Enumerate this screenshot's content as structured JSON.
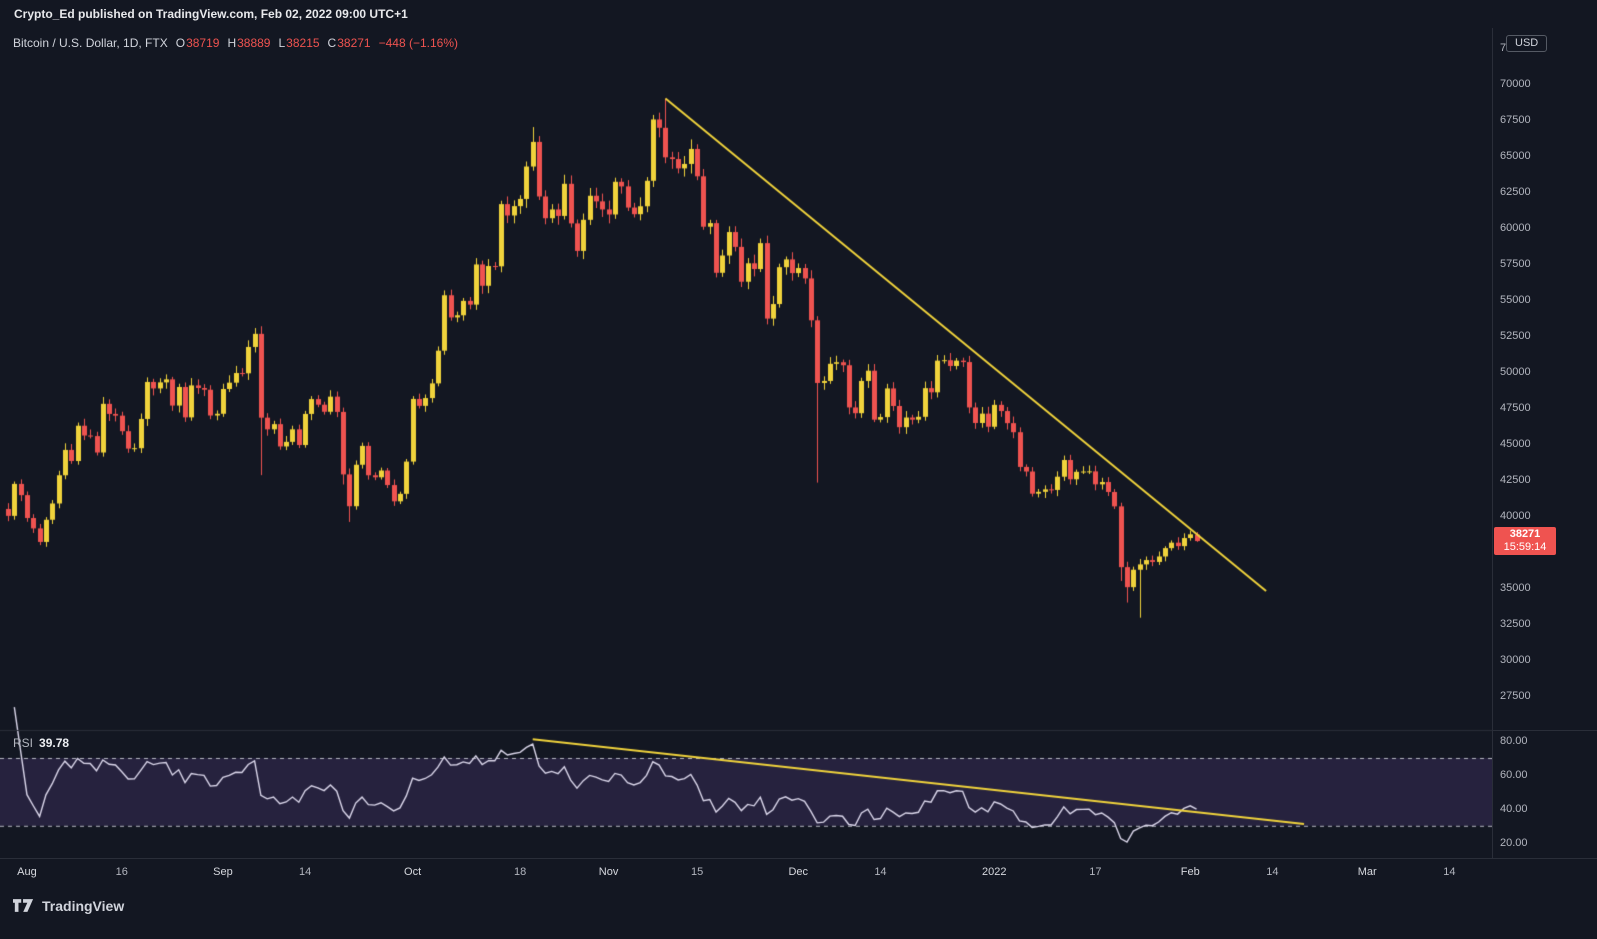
{
  "banner": {
    "text": "Crypto_Ed published on TradingView.com, Feb 02, 2022 09:00 UTC+1"
  },
  "legend": {
    "title": "Bitcoin / U.S. Dollar, 1D, FTX",
    "o_label": "O",
    "o": "38719",
    "h_label": "H",
    "h": "38889",
    "l_label": "L",
    "l": "38215",
    "c_label": "C",
    "c": "38271",
    "change": "−448 (−1.16%)"
  },
  "rsi": {
    "label": "RSI",
    "value": "39.78",
    "axis_ticks": [
      {
        "value": 80,
        "label": "80.00"
      },
      {
        "value": 60,
        "label": "60.00"
      },
      {
        "value": 40,
        "label": "40.00"
      },
      {
        "value": 20,
        "label": "20.00"
      }
    ]
  },
  "axis": {
    "currency": "USD",
    "price_ticks": [
      72500,
      70000,
      67500,
      65000,
      62500,
      60000,
      57500,
      55000,
      52500,
      50000,
      47500,
      45000,
      42500,
      40000,
      37500,
      35000,
      32500,
      30000,
      27500
    ],
    "tag": {
      "price": 38271,
      "label": "38271",
      "countdown": "15:59:14"
    }
  },
  "time_axis": {
    "ticks": [
      {
        "label": "Aug",
        "day": 3,
        "major": true
      },
      {
        "label": "16",
        "day": 18,
        "major": false
      },
      {
        "label": "Sep",
        "day": 34,
        "major": true
      },
      {
        "label": "14",
        "day": 47,
        "major": false
      },
      {
        "label": "Oct",
        "day": 64,
        "major": true
      },
      {
        "label": "18",
        "day": 81,
        "major": false
      },
      {
        "label": "Nov",
        "day": 95,
        "major": true
      },
      {
        "label": "15",
        "day": 109,
        "major": false
      },
      {
        "label": "Dec",
        "day": 125,
        "major": true
      },
      {
        "label": "14",
        "day": 138,
        "major": false
      },
      {
        "label": "2022",
        "day": 156,
        "major": true
      },
      {
        "label": "17",
        "day": 172,
        "major": false
      },
      {
        "label": "Feb",
        "day": 187,
        "major": true
      },
      {
        "label": "14",
        "day": 200,
        "major": false
      },
      {
        "label": "Mar",
        "day": 215,
        "major": true
      },
      {
        "label": "14",
        "day": 228,
        "major": false
      }
    ]
  },
  "footer": {
    "brand": "TradingView"
  },
  "colors": {
    "background": "#131722",
    "up": "#f0d33c",
    "down": "#ef5350",
    "trendline": "#f0d33c",
    "rsi_line": "#dcd8ec",
    "rsi_band_fill": "rgba(126,87,194,0.18)",
    "rsi_band_line": "#b8bac4",
    "grid": "#2a2e39",
    "axis_text": "#b2b5be",
    "text": "#d1d4dc",
    "tag_bg": "#ef5350"
  },
  "chart_data": {
    "type": "candlestick",
    "symbol": "Bitcoin / U.S. Dollar",
    "exchange": "FTX",
    "interval": "1D",
    "title": "Bitcoin / U.S. Dollar, 1D, FTX",
    "start_date": "2021-07-29",
    "last_bar_ohlc": {
      "open": 38719,
      "high": 38889,
      "low": 38215,
      "close": 38271
    },
    "closes": [
      40020,
      42240,
      41460,
      39870,
      39150,
      38210,
      39750,
      40880,
      42840,
      44600,
      43830,
      46280,
      45600,
      45560,
      44420,
      47800,
      47100,
      46980,
      45900,
      44690,
      44720,
      46750,
      49320,
      48870,
      49290,
      49500,
      47680,
      48970,
      46860,
      49080,
      48900,
      48780,
      46990,
      47110,
      48830,
      49270,
      49940,
      49920,
      51750,
      52660,
      46840,
      46030,
      46390,
      44840,
      45160,
      46030,
      44940,
      47100,
      48130,
      47740,
      47250,
      48300,
      47240,
      42900,
      40690,
      43570,
      44880,
      42840,
      42700,
      43170,
      42160,
      41030,
      41550,
      43790,
      48140,
      47660,
      48200,
      49220,
      51490,
      55340,
      53800,
      53950,
      54950,
      54690,
      57480,
      56000,
      57370,
      57350,
      61670,
      60880,
      61530,
      62030,
      64280,
      65990,
      62200,
      60690,
      61300,
      60850,
      63080,
      60330,
      58420,
      60580,
      62250,
      61860,
      61300,
      60950,
      63220,
      62900,
      61430,
      60970,
      61520,
      63290,
      67550,
      66970,
      64920,
      64800,
      64150,
      64460,
      65500,
      63600,
      60100,
      60350,
      56900,
      58100,
      59730,
      58700,
      56280,
      57560,
      57160,
      58960,
      53720,
      54730,
      57290,
      57830,
      56880,
      57230,
      56510,
      53600,
      49250,
      49390,
      50580,
      50690,
      50480,
      47550,
      47150,
      49390,
      50100,
      46700,
      46880,
      48870,
      47650,
      46180,
      46850,
      46700,
      46900,
      48890,
      48600,
      50800,
      50830,
      50430,
      50800,
      50700,
      47550,
      46470,
      47120,
      46210,
      47730,
      47300,
      46460,
      45830,
      43420,
      43100,
      41560,
      41690,
      41860,
      41820,
      42740,
      43900,
      42560,
      43080,
      43100,
      43110,
      42210,
      42370,
      41680,
      40680,
      36460,
      35070,
      36280,
      36650,
      36950,
      36820,
      37200,
      37780,
      38160,
      37920,
      38480,
      38740,
      38271
    ],
    "overrides": {
      "40": {
        "low": 42850
      },
      "53": {
        "low": 42200
      },
      "54": {
        "low": 39600
      },
      "83": {
        "high": 67020
      },
      "104": {
        "high": 69000
      },
      "128": {
        "low": 42330
      },
      "176": {
        "low": 35500
      },
      "177": {
        "low": 34000
      },
      "179": {
        "low": 32950
      },
      "188": {
        "open": 38719,
        "high": 38889,
        "low": 38215,
        "close": 38271
      }
    },
    "main_range": [
      25150,
      73900
    ],
    "rsi_range": [
      11,
      86.5
    ],
    "rsi_period": 14,
    "rsi_upper_band": 70,
    "rsi_lower_band": 30,
    "rsi_current": 39.78,
    "visible_days": 236,
    "trendline": {
      "from_day": 104,
      "from_price": 69000,
      "to_day": 199,
      "to_price": 34800
    },
    "rsi_trendline": {
      "from_day": 83,
      "from_value": 81,
      "to_day": 205,
      "to_value": 31
    }
  }
}
